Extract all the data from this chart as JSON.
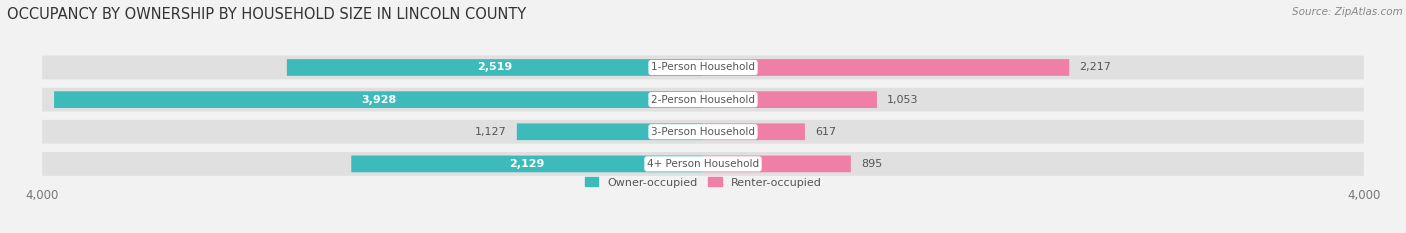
{
  "title": "OCCUPANCY BY OWNERSHIP BY HOUSEHOLD SIZE IN LINCOLN COUNTY",
  "source": "Source: ZipAtlas.com",
  "categories": [
    "1-Person Household",
    "2-Person Household",
    "3-Person Household",
    "4+ Person Household"
  ],
  "owner_values": [
    2519,
    3928,
    1127,
    2129
  ],
  "renter_values": [
    2217,
    1053,
    617,
    895
  ],
  "owner_color": "#3DBABA",
  "renter_color": "#F07FA8",
  "label_bg_color": "#FFFFFF",
  "axis_max": 4000,
  "bar_height": 0.52,
  "background_color": "#F2F2F2",
  "bar_bg_color": "#E0E0E0",
  "title_fontsize": 10.5,
  "source_fontsize": 7.5,
  "tick_fontsize": 8.5,
  "cat_fontsize": 7.5,
  "value_fontsize": 8,
  "legend_fontsize": 8,
  "figsize": [
    14.06,
    2.33
  ],
  "dpi": 100
}
